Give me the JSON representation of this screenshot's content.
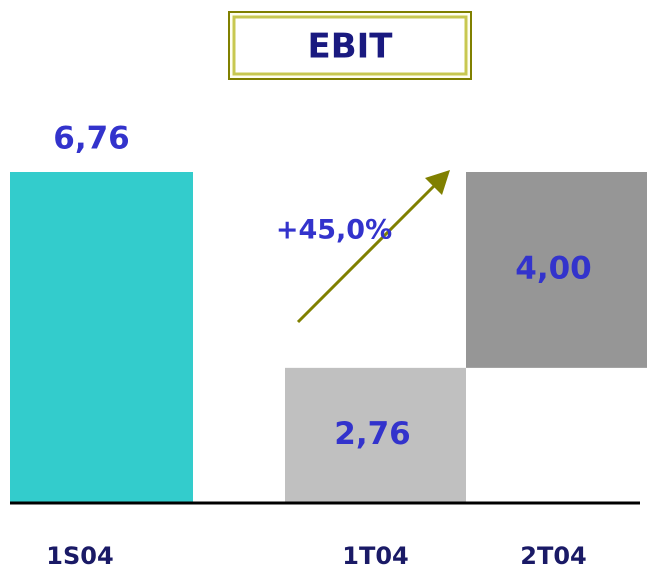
{
  "chart_data": {
    "type": "waterfall",
    "title": "EBIT",
    "categories": [
      "1S04",
      "1T04",
      "2T04"
    ],
    "values": [
      6.76,
      2.76,
      4.0
    ],
    "value_labels": [
      "6,76",
      "2,76",
      "4,00"
    ],
    "colors": [
      "#33cccc",
      "#c0c0c0",
      "#969696"
    ],
    "annotation": "+45,0%"
  }
}
